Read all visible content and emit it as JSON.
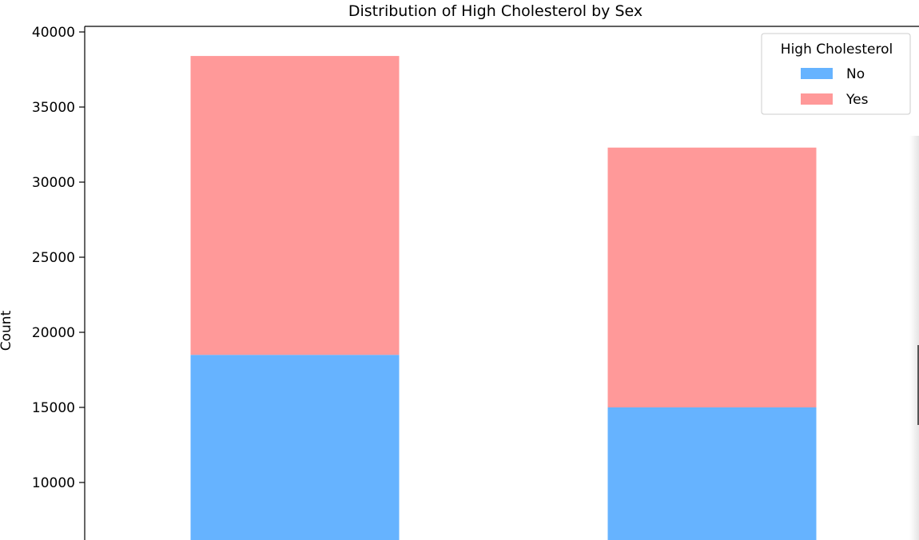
{
  "chart_data": {
    "type": "bar",
    "stacked": true,
    "title": "Distribution of High Cholesterol by Sex",
    "xlabel": "",
    "ylabel": "Count",
    "categories": [
      "",
      ""
    ],
    "series": [
      {
        "name": "No",
        "color": "#66b3ff",
        "values": [
          18500,
          15000
        ]
      },
      {
        "name": "Yes",
        "color": "#ff9999",
        "values": [
          19900,
          17300
        ]
      }
    ],
    "ylim": [
      0,
      40000
    ],
    "yticks": [
      10000,
      15000,
      20000,
      25000,
      30000,
      35000,
      40000
    ],
    "ytick_labels": [
      "10000",
      "15000",
      "20000",
      "25000",
      "30000",
      "35000",
      "40000"
    ],
    "grid": false,
    "legend": {
      "title": "High Cholesterol",
      "entries": [
        "No",
        "Yes"
      ],
      "placement": "top-right"
    }
  }
}
